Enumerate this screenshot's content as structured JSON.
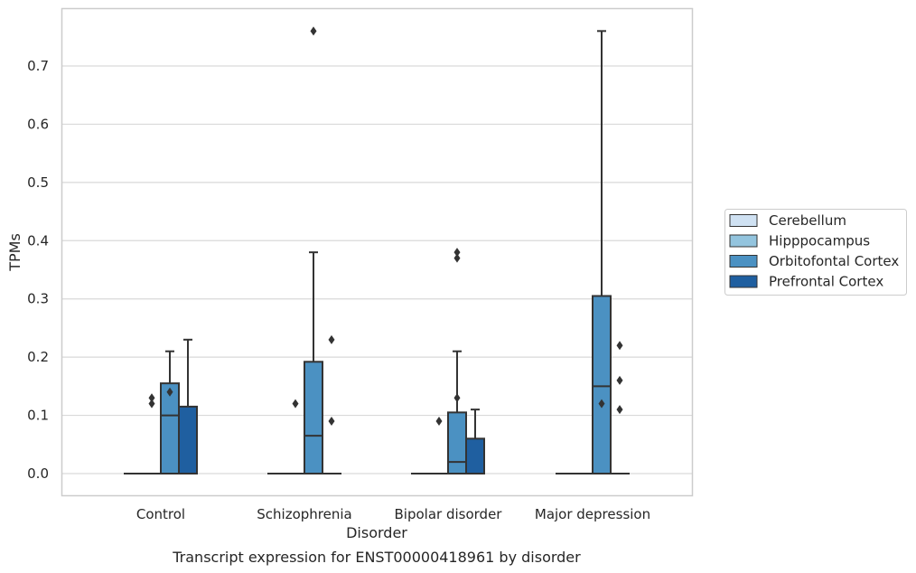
{
  "chart_data": {
    "type": "box",
    "title": "",
    "caption": "Transcript expression for ENST00000418961 by disorder",
    "xlabel": "Disorder",
    "ylabel": "TPMs",
    "categories": [
      "Control",
      "Schizophrenia",
      "Bipolar disorder",
      "Major depression"
    ],
    "ylim": [
      -0.037,
      0.8
    ],
    "yticks": [
      0.0,
      0.1,
      0.2,
      0.3,
      0.4,
      0.5,
      0.6,
      0.7
    ],
    "ytick_labels": [
      "0.0",
      "0.1",
      "0.2",
      "0.3",
      "0.4",
      "0.5",
      "0.6",
      "0.7"
    ],
    "grid": "horizontal",
    "legend_position": "right",
    "colors": {
      "edge": "#333333",
      "grid": "#d9d9d9",
      "frame": "#cccccc"
    },
    "series": [
      {
        "name": "Cerebellum",
        "color": "#cfe1f2",
        "boxes": [
          {
            "q1": 0,
            "median": 0,
            "q3": 0,
            "whisker_low": 0,
            "whisker_high": 0,
            "outliers": []
          },
          {
            "q1": 0,
            "median": 0,
            "q3": 0,
            "whisker_low": 0,
            "whisker_high": 0,
            "outliers": []
          },
          {
            "q1": 0,
            "median": 0,
            "q3": 0,
            "whisker_low": 0,
            "whisker_high": 0,
            "outliers": []
          },
          {
            "q1": 0,
            "median": 0,
            "q3": 0,
            "whisker_low": 0,
            "whisker_high": 0,
            "outliers": []
          }
        ]
      },
      {
        "name": "Hipppocampus",
        "color": "#93c4de",
        "boxes": [
          {
            "q1": 0,
            "median": 0,
            "q3": 0,
            "whisker_low": 0,
            "whisker_high": 0,
            "outliers": [
              0.12,
              0.13
            ]
          },
          {
            "q1": 0,
            "median": 0,
            "q3": 0,
            "whisker_low": 0,
            "whisker_high": 0,
            "outliers": [
              0.12
            ]
          },
          {
            "q1": 0,
            "median": 0,
            "q3": 0,
            "whisker_low": 0,
            "whisker_high": 0,
            "outliers": [
              0.09
            ]
          },
          {
            "q1": 0,
            "median": 0,
            "q3": 0,
            "whisker_low": 0,
            "whisker_high": 0,
            "outliers": []
          }
        ]
      },
      {
        "name": "Orbitofontal Cortex",
        "color": "#4b91c2",
        "boxes": [
          {
            "q1": 0,
            "median": 0.1,
            "q3": 0.155,
            "whisker_low": 0,
            "whisker_high": 0.21,
            "outliers": [
              0.14
            ]
          },
          {
            "q1": 0,
            "median": 0.065,
            "q3": 0.192,
            "whisker_low": 0,
            "whisker_high": 0.38,
            "outliers": [
              0.76
            ]
          },
          {
            "q1": 0,
            "median": 0.02,
            "q3": 0.105,
            "whisker_low": 0,
            "whisker_high": 0.21,
            "outliers": [
              0.13,
              0.37,
              0.38
            ]
          },
          {
            "q1": 0,
            "median": 0.15,
            "q3": 0.305,
            "whisker_low": 0,
            "whisker_high": 0.76,
            "outliers": [
              0.12
            ]
          }
        ]
      },
      {
        "name": "Prefrontal Cortex",
        "color": "#1f5fa0",
        "boxes": [
          {
            "q1": 0,
            "median": 0,
            "q3": 0.115,
            "whisker_low": 0,
            "whisker_high": 0.23,
            "outliers": []
          },
          {
            "q1": 0,
            "median": 0,
            "q3": 0,
            "whisker_low": 0,
            "whisker_high": 0,
            "outliers": [
              0.09,
              0.23
            ]
          },
          {
            "q1": 0,
            "median": 0,
            "q3": 0.06,
            "whisker_low": 0,
            "whisker_high": 0.11,
            "outliers": []
          },
          {
            "q1": 0,
            "median": 0,
            "q3": 0,
            "whisker_low": 0,
            "whisker_high": 0,
            "outliers": [
              0.11,
              0.16,
              0.22
            ]
          }
        ]
      }
    ]
  }
}
